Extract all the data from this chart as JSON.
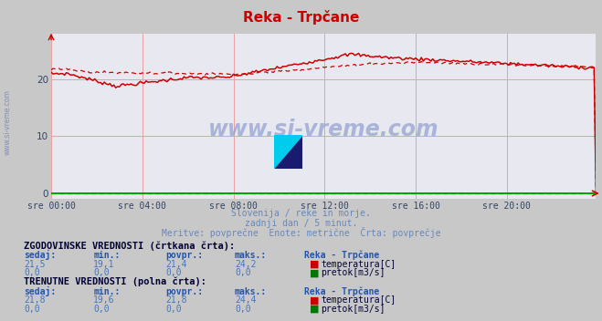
{
  "title": "Reka - Trpčane",
  "bg_color": "#c8c8c8",
  "plot_bg_color": "#e8e8f0",
  "grid_color_h": "#e8a0a0",
  "grid_color_v": "#e8a0a0",
  "axis_color": "#00aa00",
  "arrow_color": "#cc0000",
  "subtitle_lines": [
    "Slovenija / reke in morje.",
    "zadnji dan / 5 minut.",
    "Meritve: povprečne  Enote: metrične  Črta: povprečje"
  ],
  "subtitle_color": "#6688bb",
  "watermark_text": "www.si-vreme.com",
  "watermark_color": "#8899cc",
  "sidewater_color": "#7788bb",
  "xticklabels": [
    "sre 00:00",
    "sre 04:00",
    "sre 08:00",
    "sre 12:00",
    "sre 16:00",
    "sre 20:00"
  ],
  "xtick_positions": [
    0,
    48,
    96,
    144,
    192,
    240
  ],
  "yticks": [
    0,
    10,
    20
  ],
  "ylim": [
    -1,
    28
  ],
  "xlim": [
    0,
    287
  ],
  "temp_color": "#cc0000",
  "pretok_color": "#007700",
  "n_points": 288,
  "hist_label": "ZGODOVINSKE VREDNOSTI (črtkana črta):",
  "hist_header": [
    "sedaj:",
    "min.:",
    "povpr.:",
    "maks.:",
    "Reka - Trpčane"
  ],
  "hist_temp_vals": [
    "21,5",
    "19,1",
    "21,4",
    "24,2"
  ],
  "hist_pretok_vals": [
    "0,0",
    "0,0",
    "0,0",
    "0,0"
  ],
  "curr_label": "TRENUTNE VREDNOSTI (polna črta):",
  "curr_header": [
    "sedaj:",
    "min.:",
    "povpr.:",
    "maks.:",
    "Reka - Trpčane"
  ],
  "curr_temp_vals": [
    "21,8",
    "19,6",
    "21,8",
    "24,4"
  ],
  "curr_pretok_vals": [
    "0,0",
    "0,0",
    "0,0",
    "0,0"
  ],
  "legend_temp": "temperatura[C]",
  "legend_pretok": "pretok[m3/s]"
}
